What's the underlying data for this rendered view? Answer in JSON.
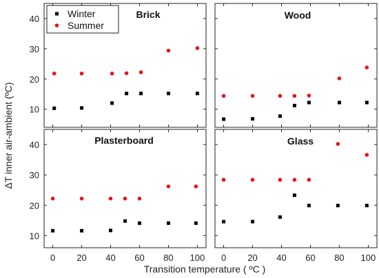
{
  "chart_data": {
    "type": "scatter",
    "xlabel": "Transition temperature ( ºC )",
    "ylabel": "ΔT inner air-ambient  (ºC)",
    "xticks": [
      0,
      20,
      40,
      60,
      80,
      100
    ],
    "xlim": [
      -6,
      106
    ],
    "legend": {
      "placement": "top-left",
      "entries": [
        {
          "name": "Winter",
          "color": "#000000",
          "marker": "square"
        },
        {
          "name": "Summer",
          "color": "#e8141b",
          "marker": "circle"
        }
      ]
    },
    "panels": [
      {
        "title": "Brick",
        "ylim": [
          4,
          45
        ],
        "yticks": [
          10,
          20,
          30,
          40
        ],
        "series": [
          {
            "name": "Winter",
            "x": [
              1,
              20,
              41,
              51,
              61,
              80,
              100
            ],
            "y": [
              10.3,
              10.4,
              12.0,
              15.2,
              15.2,
              15.2,
              15.2
            ]
          },
          {
            "name": "Summer",
            "x": [
              1,
              20,
              41,
              51,
              61,
              80,
              100
            ],
            "y": [
              21.8,
              21.8,
              21.8,
              21.9,
              22.2,
              29.4,
              30.2
            ]
          }
        ]
      },
      {
        "title": "Wood",
        "ylim": [
          4,
          45
        ],
        "yticks": [
          10,
          20,
          30,
          40
        ],
        "series": [
          {
            "name": "Winter",
            "x": [
              0,
              20,
              39,
              49,
              59,
              80,
              99
            ],
            "y": [
              6.7,
              6.8,
              7.7,
              11.2,
              12.2,
              12.2,
              12.2
            ]
          },
          {
            "name": "Summer",
            "x": [
              0,
              20,
              39,
              49,
              59,
              80,
              99
            ],
            "y": [
              14.4,
              14.4,
              14.4,
              14.4,
              14.5,
              20.2,
              23.8
            ]
          }
        ]
      },
      {
        "title": "Plasterboard",
        "ylim": [
          6,
          45
        ],
        "yticks": [
          10,
          20,
          30,
          40
        ],
        "series": [
          {
            "name": "Winter",
            "x": [
              0,
              20,
              40,
              50,
              60,
              80,
              99
            ],
            "y": [
              11.6,
              11.6,
              11.7,
              14.8,
              14.1,
              14.1,
              14.1
            ]
          },
          {
            "name": "Summer",
            "x": [
              0,
              20,
              40,
              50,
              60,
              80,
              99
            ],
            "y": [
              22.2,
              22.2,
              22.2,
              22.2,
              22.2,
              26.2,
              26.2
            ]
          }
        ]
      },
      {
        "title": "Glass",
        "ylim": [
          6,
          45
        ],
        "yticks": [
          10,
          20,
          30,
          40
        ],
        "series": [
          {
            "name": "Winter",
            "x": [
              0,
              20,
              39,
              49,
              59,
              79,
              99
            ],
            "y": [
              14.6,
              14.6,
              16.1,
              23.3,
              19.9,
              19.9,
              19.9
            ]
          },
          {
            "name": "Summer",
            "x": [
              0,
              20,
              39,
              49,
              59,
              79,
              99
            ],
            "y": [
              28.4,
              28.4,
              28.4,
              28.4,
              28.4,
              40.2,
              36.6
            ]
          }
        ]
      }
    ]
  }
}
